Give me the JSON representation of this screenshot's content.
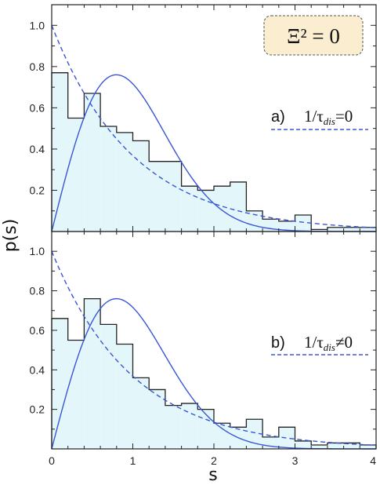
{
  "figure": {
    "badge_text": "Ξ² = 0",
    "ylabel": "p(s)",
    "xlabel": "s"
  },
  "colors": {
    "hist_fill": "#e3f7fb",
    "hist_edge": "#222222",
    "curve": "#3a55d6",
    "badge_bg": "#fbedd0",
    "badge_border": "#555555"
  },
  "chart_data": [
    {
      "type": "bar",
      "panel": "a",
      "label_prefix": "a)",
      "label_text": "1/τdis=0",
      "xlim": [
        0,
        4
      ],
      "ylim": [
        0,
        1.1
      ],
      "x_ticks": [],
      "y_ticks": [
        "1.0",
        "0.8",
        "0.6",
        "0.4",
        "0.2"
      ],
      "grid": false,
      "bin_width": 0.2,
      "bin_edges_start": 0,
      "values": [
        0.77,
        0.55,
        0.67,
        0.51,
        0.48,
        0.44,
        0.34,
        0.34,
        0.22,
        0.2,
        0.22,
        0.24,
        0.1,
        0.06,
        0.05,
        0.08,
        0.01,
        0.02,
        0.02,
        0.02
      ],
      "series": [
        {
          "name": "1/τdis=0",
          "style": "dashed",
          "function": "exp(-s)"
        },
        {
          "style": "solid",
          "function": "(pi/2) s exp(-pi s^2/4)"
        }
      ]
    },
    {
      "type": "bar",
      "panel": "b",
      "label_prefix": "b)",
      "label_text": "1/τdis≠0",
      "xlim": [
        0,
        4
      ],
      "ylim": [
        0,
        1.1
      ],
      "x_ticks": [
        "0",
        "1",
        "2",
        "3",
        "4"
      ],
      "y_ticks": [
        "1.0",
        "0.8",
        "0.6",
        "0.4",
        "0.2"
      ],
      "grid": false,
      "bin_width": 0.2,
      "bin_edges_start": 0,
      "values": [
        0.66,
        0.55,
        0.76,
        0.63,
        0.53,
        0.36,
        0.3,
        0.22,
        0.23,
        0.2,
        0.13,
        0.11,
        0.15,
        0.06,
        0.11,
        0.04,
        0.02,
        0.03,
        0.03,
        0.02
      ],
      "series": [
        {
          "name": "1/τdis≠0",
          "style": "dashed",
          "function": "exp(-s)"
        },
        {
          "style": "solid",
          "function": "(pi/2) s exp(-pi s^2/4)"
        }
      ]
    }
  ]
}
